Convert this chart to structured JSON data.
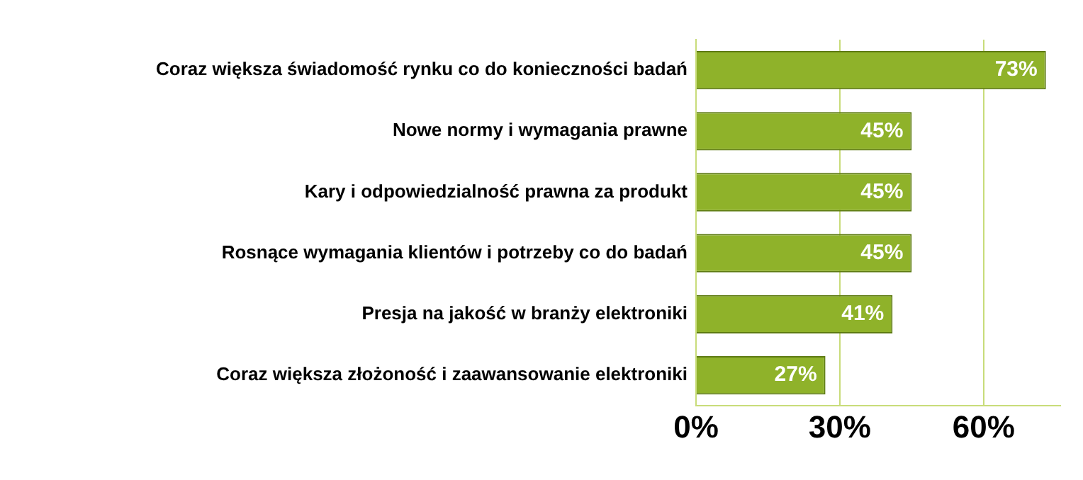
{
  "chart_data": {
    "type": "bar",
    "orientation": "horizontal",
    "categories": [
      "Coraz większa świadomość rynku co do konieczności badań",
      "Nowe normy i wymagania prawne",
      "Kary i odpowiedzialność prawna za produkt",
      "Rosnące wymagania klientów i potrzeby co do badań",
      "Presja na jakość w branży elektroniki",
      "Coraz większa złożoność i zaawansowanie elektroniki"
    ],
    "values": [
      73,
      45,
      45,
      45,
      41,
      27
    ],
    "value_labels": [
      "73%",
      "45%",
      "45%",
      "45%",
      "41%",
      "27%"
    ],
    "color": "#8fb22a",
    "xlim": [
      0,
      76
    ],
    "xticks": [
      {
        "value": 0,
        "label": "0%"
      },
      {
        "value": 30,
        "label": "30%"
      },
      {
        "value": 60,
        "label": "60%"
      }
    ],
    "grid": "x"
  }
}
